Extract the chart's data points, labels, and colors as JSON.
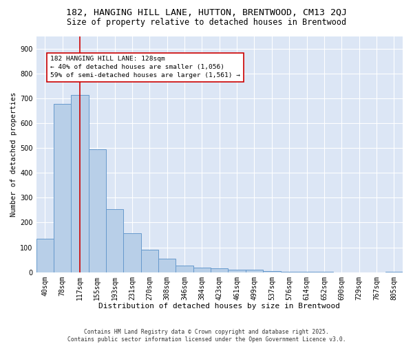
{
  "title1": "182, HANGING HILL LANE, HUTTON, BRENTWOOD, CM13 2QJ",
  "title2": "Size of property relative to detached houses in Brentwood",
  "xlabel": "Distribution of detached houses by size in Brentwood",
  "ylabel": "Number of detached properties",
  "bar_labels": [
    "40sqm",
    "78sqm",
    "117sqm",
    "155sqm",
    "193sqm",
    "231sqm",
    "270sqm",
    "308sqm",
    "346sqm",
    "384sqm",
    "423sqm",
    "461sqm",
    "499sqm",
    "537sqm",
    "576sqm",
    "614sqm",
    "652sqm",
    "690sqm",
    "729sqm",
    "767sqm",
    "805sqm"
  ],
  "bar_values": [
    136,
    678,
    712,
    495,
    255,
    157,
    90,
    55,
    26,
    19,
    15,
    10,
    9,
    5,
    3,
    1,
    1,
    0,
    0,
    0,
    1
  ],
  "bar_color": "#b8cfe8",
  "bar_edge_color": "#6699cc",
  "vline_x_index": 2,
  "vline_color": "#cc0000",
  "annotation_text": "182 HANGING HILL LANE: 128sqm\n← 40% of detached houses are smaller (1,056)\n59% of semi-detached houses are larger (1,561) →",
  "annotation_box_color": "#cc0000",
  "ylim": [
    0,
    950
  ],
  "yticks": [
    0,
    100,
    200,
    300,
    400,
    500,
    600,
    700,
    800,
    900
  ],
  "bg_color": "#dce6f5",
  "footer": "Contains HM Land Registry data © Crown copyright and database right 2025.\nContains public sector information licensed under the Open Government Licence v3.0.",
  "title1_fontsize": 9.5,
  "title2_fontsize": 8.5,
  "xlabel_fontsize": 8,
  "ylabel_fontsize": 7.5,
  "tick_fontsize": 7,
  "annotation_fontsize": 6.8,
  "footer_fontsize": 5.8
}
